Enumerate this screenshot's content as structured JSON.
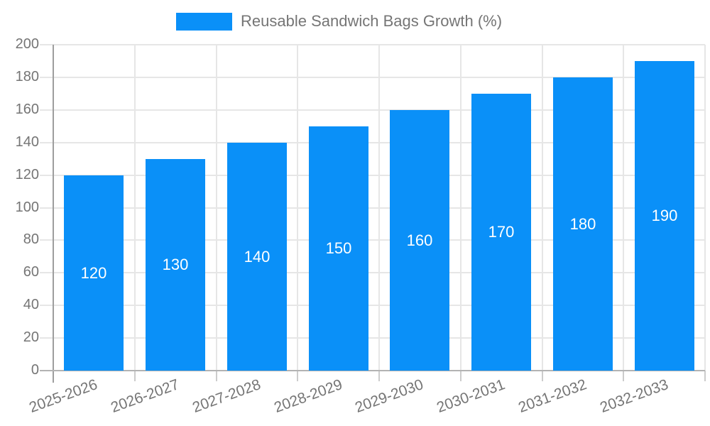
{
  "legend": {
    "label": "Reusable Sandwich Bags Growth (%)"
  },
  "chart_data": {
    "type": "bar",
    "title": "Reusable Sandwich Bags Growth (%)",
    "categories": [
      "2025-2026",
      "2026-2027",
      "2027-2028",
      "2028-2029",
      "2029-2030",
      "2030-2031",
      "2031-2032",
      "2032-2033"
    ],
    "values": [
      120,
      130,
      140,
      150,
      160,
      170,
      180,
      190
    ],
    "xlabel": "",
    "ylabel": "",
    "ylim": [
      0,
      200
    ],
    "yticks": [
      0,
      20,
      40,
      60,
      80,
      100,
      120,
      140,
      160,
      180,
      200
    ],
    "grid": true,
    "legend_position": "top-center",
    "colors": {
      "bar": "#0a90f8",
      "bar_label": "#ffffff",
      "axis_text": "#757575",
      "gridline": "#e6e6e6",
      "axis_line": "#9e9e9e",
      "baseline": "#b3b3b3",
      "background": "#ffffff"
    }
  }
}
